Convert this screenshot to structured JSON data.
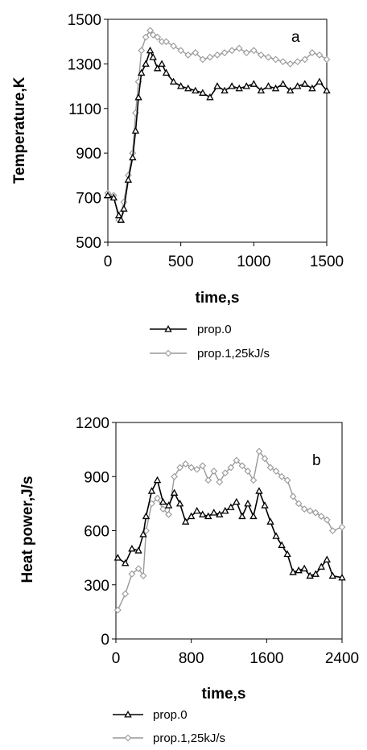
{
  "chart_data": [
    {
      "type": "line",
      "panel_label": "a",
      "title": "",
      "xlabel": "time,s",
      "ylabel": "Temperature,K",
      "xlim": [
        0,
        1500
      ],
      "ylim": [
        500,
        1500
      ],
      "xticks": [
        "0",
        "500",
        "1000",
        "1500"
      ],
      "yticks": [
        "500",
        "700",
        "900",
        "1100",
        "1300",
        "1500"
      ],
      "grid": false,
      "legend_position": "below",
      "series": [
        {
          "name": "prop.0",
          "color": "#000000",
          "marker": "triangle",
          "x": [
            0,
            40,
            75,
            90,
            110,
            140,
            170,
            190,
            210,
            230,
            260,
            290,
            310,
            340,
            370,
            400,
            450,
            500,
            550,
            600,
            650,
            700,
            750,
            800,
            850,
            900,
            950,
            1000,
            1050,
            1100,
            1150,
            1200,
            1250,
            1300,
            1350,
            1400,
            1450,
            1500
          ],
          "y": [
            710,
            700,
            620,
            600,
            650,
            780,
            880,
            1000,
            1150,
            1260,
            1300,
            1360,
            1330,
            1280,
            1300,
            1260,
            1220,
            1200,
            1190,
            1180,
            1170,
            1150,
            1200,
            1180,
            1200,
            1190,
            1200,
            1210,
            1180,
            1200,
            1190,
            1210,
            1180,
            1200,
            1210,
            1190,
            1220,
            1180
          ]
        },
        {
          "name": "prop.1,25kJ/s",
          "color": "#999999",
          "marker": "diamond",
          "x": [
            0,
            40,
            75,
            90,
            110,
            140,
            170,
            190,
            210,
            230,
            260,
            290,
            310,
            340,
            370,
            400,
            450,
            500,
            550,
            600,
            650,
            700,
            750,
            800,
            850,
            900,
            950,
            1000,
            1050,
            1100,
            1150,
            1200,
            1250,
            1300,
            1350,
            1400,
            1450,
            1500
          ],
          "y": [
            720,
            710,
            600,
            630,
            680,
            800,
            900,
            1080,
            1220,
            1360,
            1420,
            1450,
            1430,
            1420,
            1400,
            1400,
            1380,
            1360,
            1340,
            1350,
            1320,
            1330,
            1340,
            1350,
            1360,
            1370,
            1350,
            1360,
            1340,
            1330,
            1320,
            1310,
            1300,
            1310,
            1320,
            1350,
            1340,
            1320
          ]
        }
      ]
    },
    {
      "type": "line",
      "panel_label": "b",
      "title": "",
      "xlabel": "time,s",
      "ylabel": "Heat power,J/s",
      "xlim": [
        0,
        2400
      ],
      "ylim": [
        0,
        1200
      ],
      "xticks": [
        "0",
        "800",
        "1600",
        "2400"
      ],
      "yticks": [
        "0",
        "300",
        "600",
        "900",
        "1200"
      ],
      "grid": false,
      "legend_position": "below",
      "series": [
        {
          "name": "prop.0",
          "color": "#000000",
          "marker": "triangle",
          "x": [
            20,
            100,
            170,
            240,
            290,
            320,
            380,
            440,
            500,
            560,
            620,
            680,
            740,
            800,
            860,
            920,
            980,
            1040,
            1100,
            1160,
            1220,
            1280,
            1340,
            1400,
            1460,
            1520,
            1580,
            1640,
            1700,
            1760,
            1820,
            1880,
            1940,
            2000,
            2060,
            2120,
            2180,
            2240,
            2300,
            2400
          ],
          "y": [
            450,
            420,
            500,
            490,
            580,
            680,
            820,
            880,
            760,
            740,
            810,
            750,
            650,
            680,
            710,
            690,
            680,
            700,
            690,
            710,
            730,
            760,
            680,
            750,
            680,
            820,
            740,
            650,
            570,
            520,
            470,
            370,
            380,
            390,
            350,
            360,
            400,
            440,
            350,
            340
          ]
        },
        {
          "name": "prop.1,25kJ/s",
          "color": "#999999",
          "marker": "diamond",
          "x": [
            20,
            100,
            170,
            240,
            290,
            320,
            380,
            440,
            500,
            560,
            620,
            680,
            740,
            800,
            860,
            920,
            980,
            1040,
            1100,
            1160,
            1220,
            1280,
            1340,
            1400,
            1460,
            1520,
            1580,
            1640,
            1700,
            1760,
            1820,
            1880,
            1940,
            2000,
            2060,
            2120,
            2180,
            2240,
            2300,
            2400
          ],
          "y": [
            160,
            250,
            360,
            390,
            350,
            600,
            750,
            780,
            720,
            690,
            900,
            950,
            970,
            950,
            940,
            960,
            880,
            930,
            870,
            920,
            950,
            990,
            960,
            930,
            880,
            1040,
            1000,
            950,
            930,
            900,
            880,
            790,
            750,
            720,
            710,
            700,
            680,
            660,
            600,
            620
          ]
        }
      ]
    }
  ]
}
